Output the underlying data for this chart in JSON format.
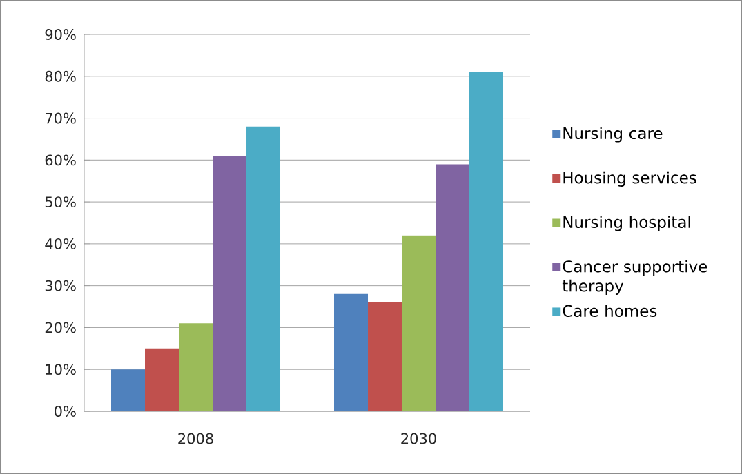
{
  "chart_data": {
    "type": "bar",
    "categories": [
      "2008",
      "2030"
    ],
    "series": [
      {
        "name": "Nursing care",
        "color": "#4f81bd",
        "values": [
          10,
          28
        ]
      },
      {
        "name": "Housing services",
        "color": "#c0504d",
        "values": [
          15,
          26
        ]
      },
      {
        "name": "Nursing hospital",
        "color": "#9bbb59",
        "values": [
          21,
          42
        ]
      },
      {
        "name": "Cancer supportive therapy",
        "color": "#8064a2",
        "values": [
          61,
          59
        ]
      },
      {
        "name": "Care homes",
        "color": "#4bacc6",
        "values": [
          68,
          81
        ]
      }
    ],
    "ylim": [
      0,
      90
    ],
    "yticks": [
      {
        "value": 0,
        "label": "0%"
      },
      {
        "value": 10,
        "label": "10%"
      },
      {
        "value": 20,
        "label": "20%"
      },
      {
        "value": 30,
        "label": "30%"
      },
      {
        "value": 40,
        "label": "40%"
      },
      {
        "value": 50,
        "label": "50%"
      },
      {
        "value": 60,
        "label": "60%"
      },
      {
        "value": 70,
        "label": "70%"
      },
      {
        "value": 80,
        "label": "80%"
      },
      {
        "value": 90,
        "label": "90%"
      }
    ],
    "grid": "y",
    "legend": "right"
  }
}
